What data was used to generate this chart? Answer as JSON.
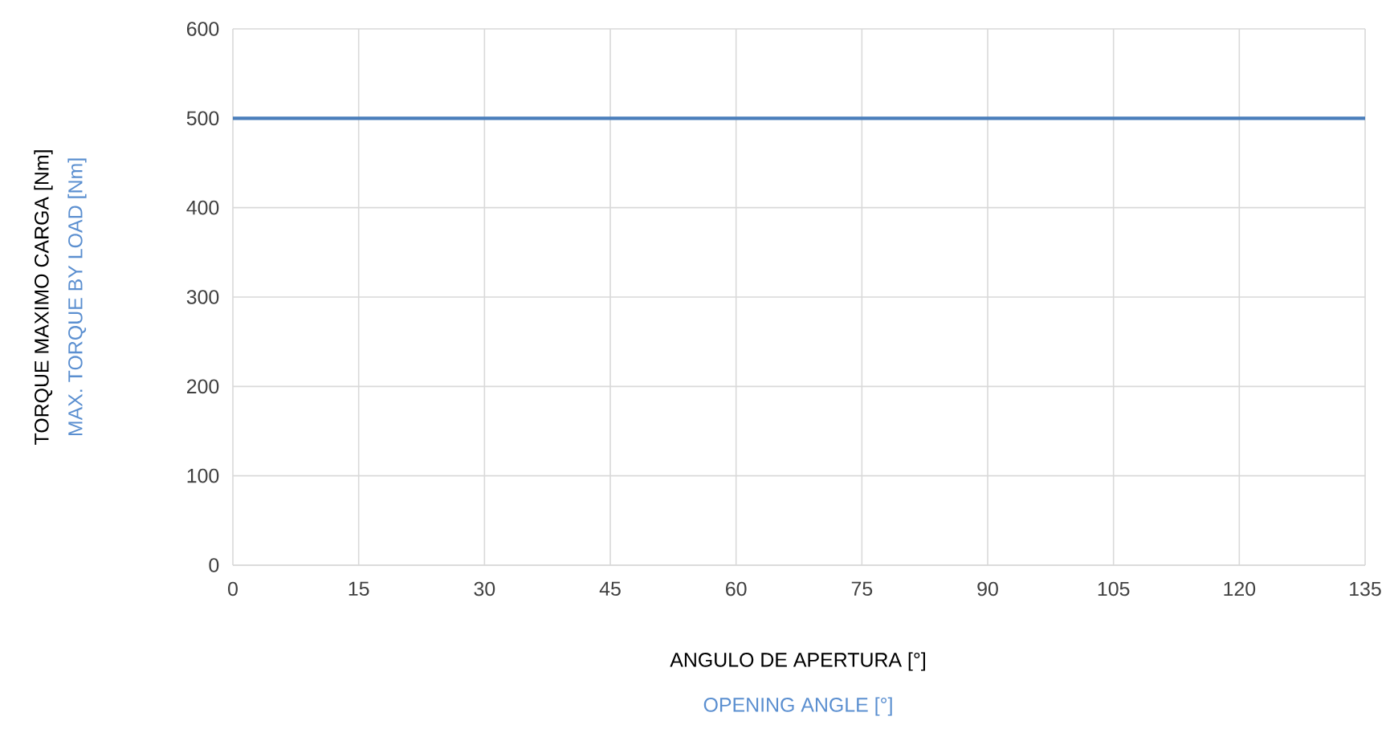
{
  "chart_data": {
    "type": "line",
    "xlabel": "ANGULO DE APERTURA [°]",
    "annotations": [
      "TORQUE MAXIMO CARGA  [Nm]",
      "OPENING ANGLE [°]",
      "MAX. TORQUE BY LOAD [Nm]"
    ],
    "x": [
      0,
      135
    ],
    "series": [
      {
        "color": "#4a7ebb",
        "values": [
          500,
          500
        ]
      }
    ],
    "xlim": [
      0,
      135
    ],
    "xticks": [
      0,
      15,
      30,
      45,
      60,
      75,
      90,
      105,
      120,
      135
    ],
    "ylim": [
      0,
      600
    ],
    "yticks": [
      0,
      100,
      200,
      300,
      400,
      500,
      600
    ],
    "grid": true,
    "marker": "none",
    "line_style": "solid"
  }
}
